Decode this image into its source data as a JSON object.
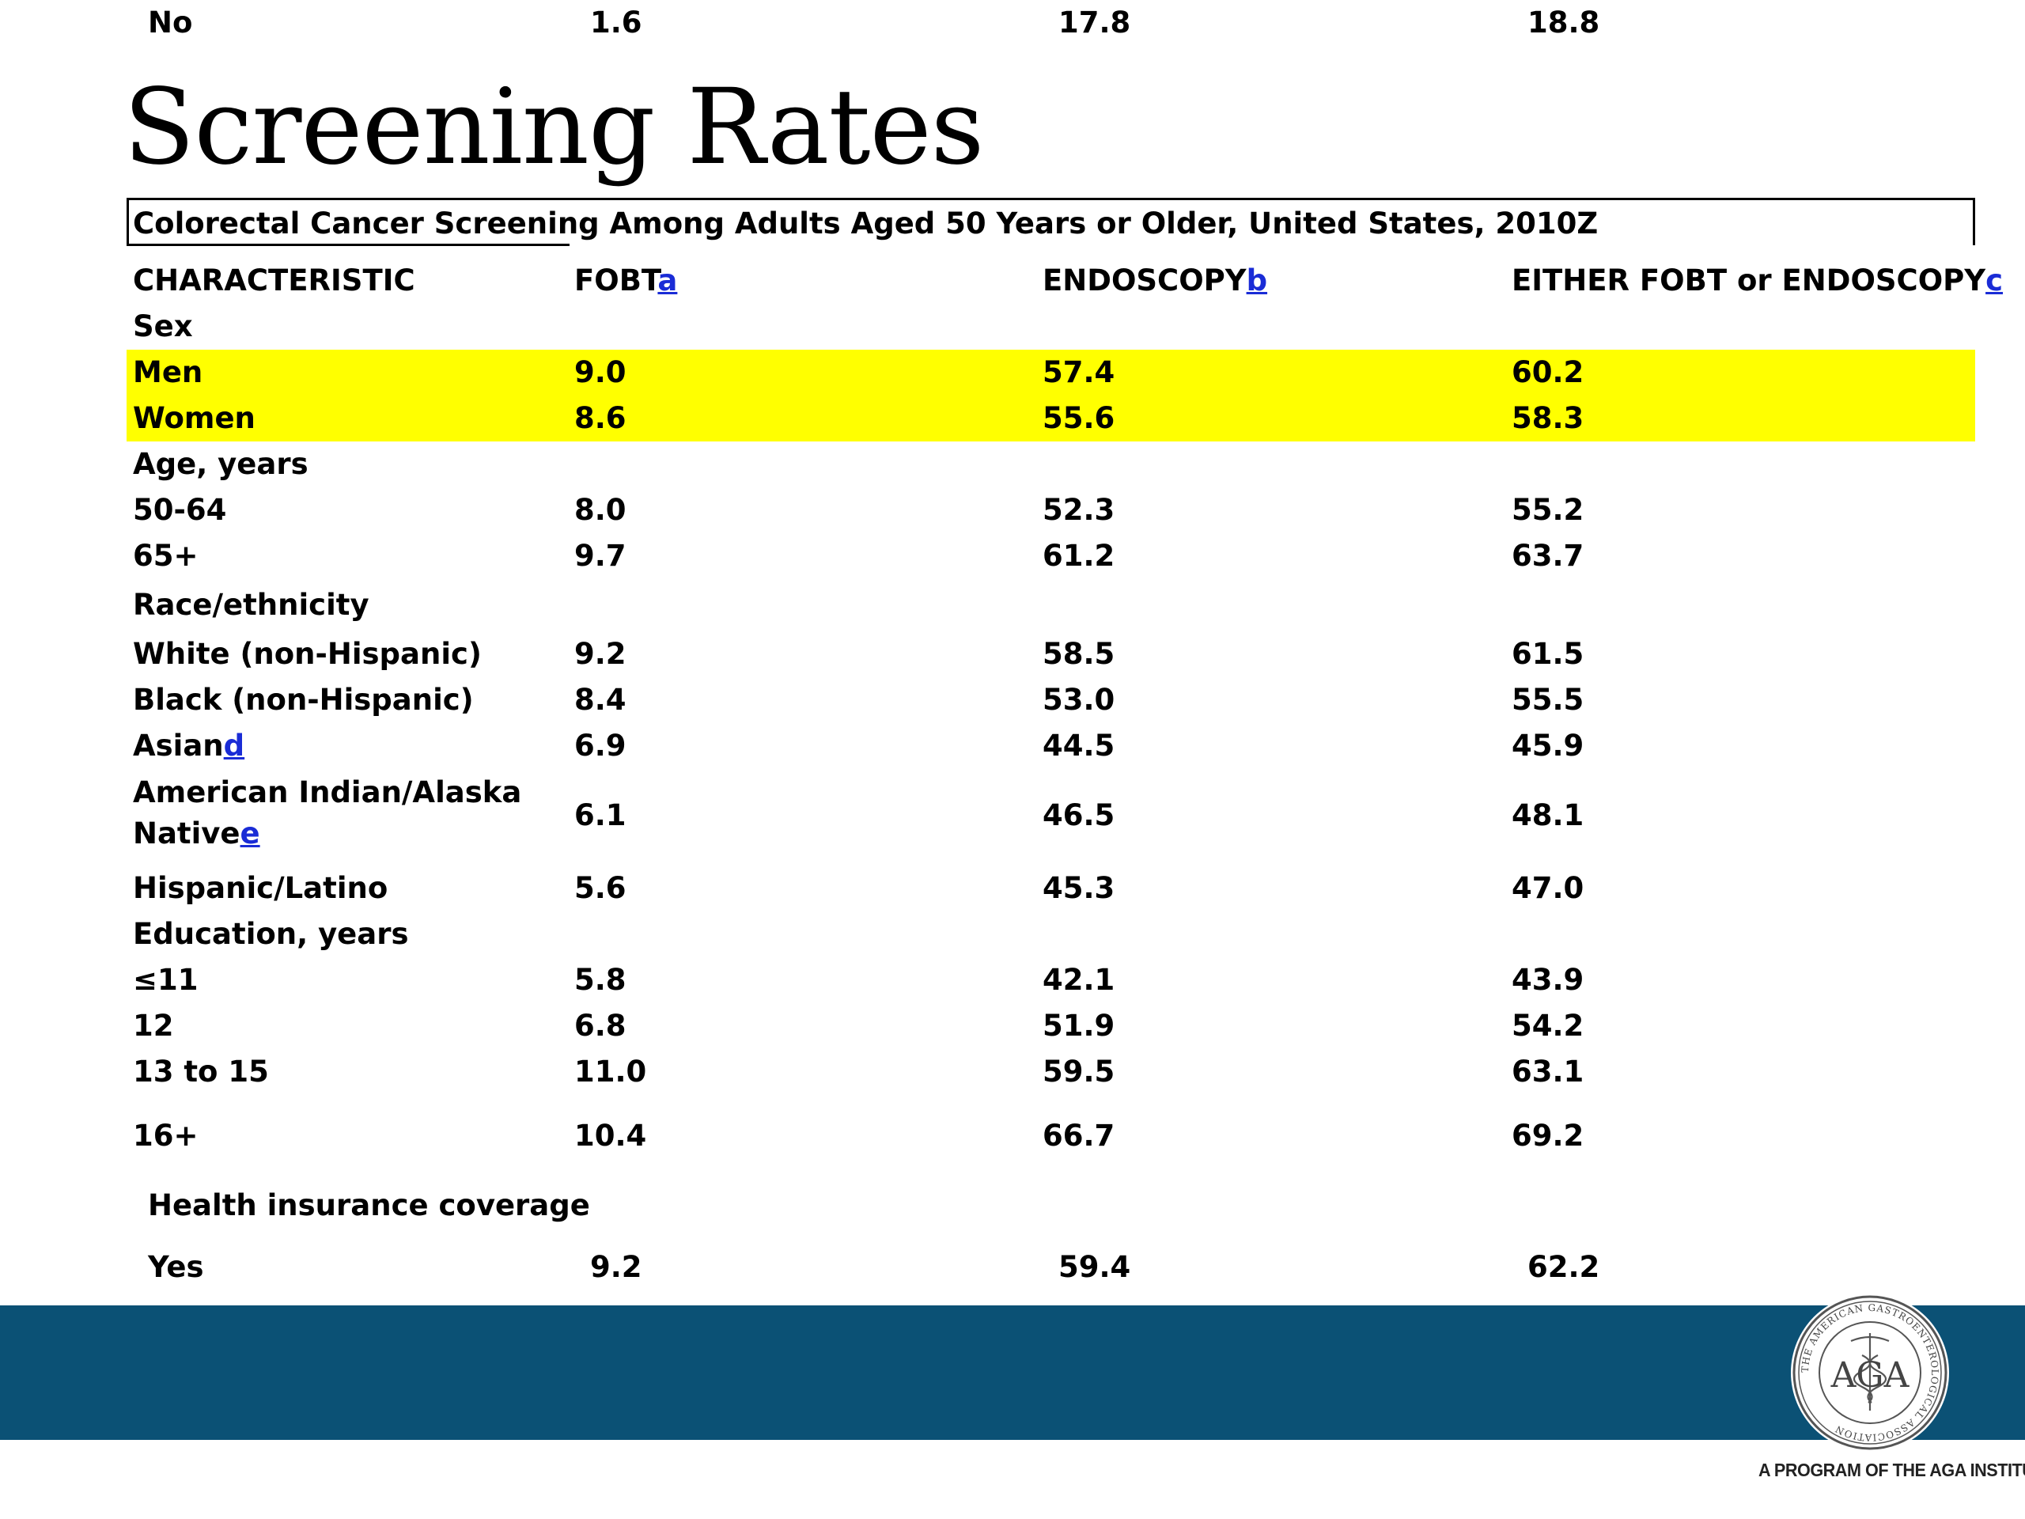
{
  "title": "Screening Rates",
  "table": {
    "caption": "Colorectal Cancer Screening Among Adults Aged 50 Years or Older, United States, 2010Z",
    "headers": [
      {
        "text": "CHARACTERISTIC",
        "fn": ""
      },
      {
        "text": "FOBT",
        "fn": "a"
      },
      {
        "text": "ENDOSCOPY",
        "fn": "b"
      },
      {
        "text": "EITHER FOBT or ENDOSCOPY",
        "fn": "c"
      }
    ],
    "rows": [
      {
        "label": "Sex",
        "fn": "",
        "kind": "group"
      },
      {
        "label": "Men",
        "fn": "",
        "values": [
          "9.0",
          "57.4",
          "60.2"
        ],
        "highlight": true
      },
      {
        "label": "Women",
        "fn": "",
        "values": [
          "8.6",
          "55.6",
          "58.3"
        ],
        "highlight": true
      },
      {
        "label": "Age, years",
        "fn": "",
        "kind": "group"
      },
      {
        "label": "50-64",
        "fn": "",
        "values": [
          "8.0",
          "52.3",
          "55.2"
        ]
      },
      {
        "label": "65+",
        "fn": "",
        "values": [
          "9.7",
          "61.2",
          "63.7"
        ]
      },
      {
        "label": "Race/ethnicity",
        "fn": "",
        "kind": "group"
      },
      {
        "label": "White (non-Hispanic)",
        "fn": "",
        "values": [
          "9.2",
          "58.5",
          "61.5"
        ]
      },
      {
        "label": "Black (non-Hispanic)",
        "fn": "",
        "values": [
          "8.4",
          "53.0",
          "55.5"
        ]
      },
      {
        "label": "Asian",
        "fn": "d",
        "values": [
          "6.9",
          "44.5",
          "45.9"
        ]
      },
      {
        "label": "American Indian/Alaska",
        "label2": "Native",
        "fn": "e",
        "values": [
          "6.1",
          "46.5",
          "48.1"
        ]
      },
      {
        "label": "Hispanic/Latino",
        "fn": "",
        "values": [
          "5.6",
          "45.3",
          "47.0"
        ]
      },
      {
        "label": "Education, years",
        "fn": "",
        "kind": "group"
      },
      {
        "label": "≤11",
        "fn": "",
        "values": [
          "5.8",
          "42.1",
          "43.9"
        ]
      },
      {
        "label": "12",
        "fn": "",
        "values": [
          "6.8",
          "51.9",
          "54.2"
        ]
      },
      {
        "label": "13 to 15",
        "fn": "",
        "values": [
          "11.0",
          "59.5",
          "63.1"
        ]
      },
      {
        "label": "16+",
        "fn": "",
        "values": [
          "10.4",
          "66.7",
          "69.2"
        ]
      },
      {
        "label": "Health insurance coverage",
        "fn": "",
        "kind": "group",
        "indent": true
      },
      {
        "label": "Yes",
        "fn": "",
        "values": [
          "9.2",
          "59.4",
          "62.2"
        ],
        "indent": true
      },
      {
        "label": "No",
        "fn": "",
        "values": [
          "1.6",
          "17.8",
          "18.8"
        ],
        "indent": true
      }
    ]
  },
  "footer": {
    "tagline": "A PROGRAM OF THE AGA INSTITUTE",
    "seal": {
      "center_text": "AGA",
      "ring_text": "THE AMERICAN GASTROENTEROLOGICAL ASSOCIATION",
      "icon": "caduceus-seal-icon",
      "ring_color": "#555555"
    },
    "band_color": "#0b5175"
  }
}
